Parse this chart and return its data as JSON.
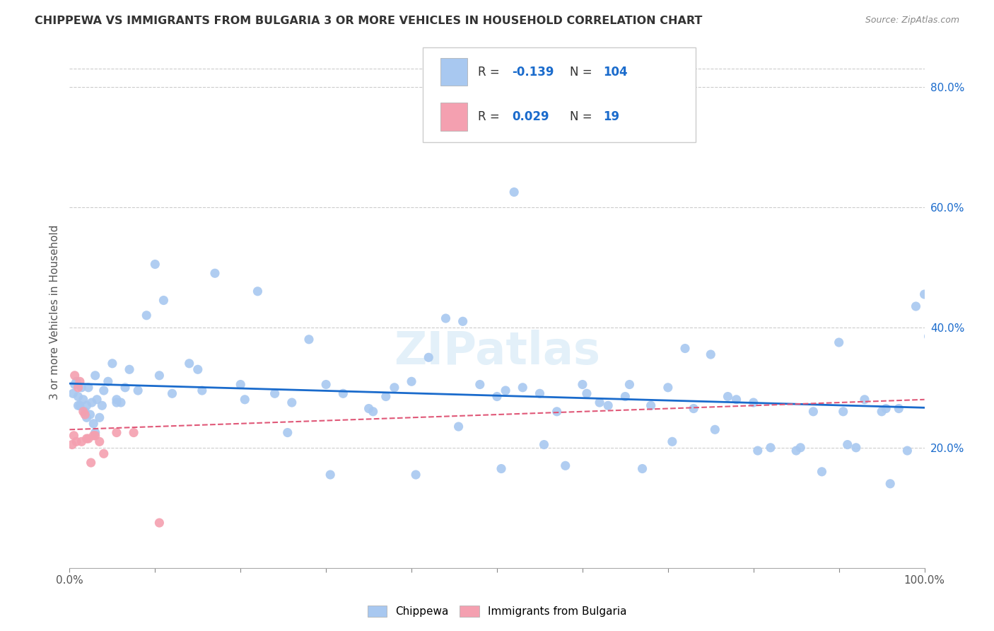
{
  "title": "CHIPPEWA VS IMMIGRANTS FROM BULGARIA 3 OR MORE VEHICLES IN HOUSEHOLD CORRELATION CHART",
  "source": "Source: ZipAtlas.com",
  "ylabel": "3 or more Vehicles in Household",
  "legend_label1": "Chippewa",
  "legend_label2": "Immigrants from Bulgaria",
  "r1": "-0.139",
  "n1": "104",
  "r2": "0.029",
  "n2": "19",
  "chippewa_color": "#a8c8f0",
  "bulgaria_color": "#f4a0b0",
  "line1_color": "#1a6bcc",
  "line2_color": "#e05878",
  "text_color": "#333333",
  "axis_color": "#1a6bcc",
  "grid_color": "#cccccc",
  "background_color": "#ffffff",
  "watermark": "ZIPatlas",
  "chippewa_x": [
    0.4,
    0.6,
    0.8,
    1.0,
    1.2,
    1.4,
    1.6,
    1.8,
    2.0,
    2.2,
    2.4,
    2.6,
    2.8,
    3.0,
    3.2,
    3.5,
    3.8,
    4.0,
    4.5,
    5.0,
    5.5,
    6.0,
    6.5,
    7.0,
    8.0,
    9.0,
    10.0,
    11.0,
    12.0,
    14.0,
    15.0,
    17.0,
    20.0,
    22.0,
    24.0,
    26.0,
    28.0,
    30.0,
    32.0,
    35.0,
    37.0,
    38.0,
    40.0,
    42.0,
    44.0,
    46.0,
    48.0,
    50.0,
    51.0,
    52.0,
    53.0,
    55.0,
    57.0,
    58.0,
    60.0,
    62.0,
    63.0,
    65.0,
    67.0,
    68.0,
    70.0,
    72.0,
    73.0,
    75.0,
    77.0,
    78.0,
    80.0,
    82.0,
    85.0,
    87.0,
    88.0,
    90.0,
    91.0,
    92.0,
    93.0,
    95.0,
    96.0,
    97.0,
    98.0,
    99.0,
    100.0,
    100.5,
    95.5,
    90.5,
    85.5,
    80.5,
    75.5,
    70.5,
    65.5,
    60.5,
    55.5,
    50.5,
    45.5,
    40.5,
    35.5,
    30.5,
    25.5,
    20.5,
    15.5,
    10.5,
    5.5,
    3.0,
    2.0,
    1.0
  ],
  "chippewa_y": [
    29.0,
    30.5,
    31.0,
    28.5,
    27.0,
    30.0,
    28.0,
    26.0,
    27.0,
    30.0,
    25.5,
    27.5,
    24.0,
    22.5,
    28.0,
    25.0,
    27.0,
    29.5,
    31.0,
    34.0,
    28.0,
    27.5,
    30.0,
    33.0,
    29.5,
    42.0,
    50.5,
    44.5,
    29.0,
    34.0,
    33.0,
    49.0,
    30.5,
    46.0,
    29.0,
    27.5,
    38.0,
    30.5,
    29.0,
    26.5,
    28.5,
    30.0,
    31.0,
    35.0,
    41.5,
    41.0,
    30.5,
    28.5,
    29.5,
    62.5,
    30.0,
    29.0,
    26.0,
    17.0,
    30.5,
    27.5,
    27.0,
    28.5,
    16.5,
    27.0,
    30.0,
    36.5,
    26.5,
    35.5,
    28.5,
    28.0,
    27.5,
    20.0,
    19.5,
    26.0,
    16.0,
    37.5,
    20.5,
    20.0,
    28.0,
    26.0,
    14.0,
    26.5,
    19.5,
    43.5,
    45.5,
    38.5,
    26.5,
    26.0,
    20.0,
    19.5,
    23.0,
    21.0,
    30.5,
    29.0,
    20.5,
    16.5,
    23.5,
    15.5,
    26.0,
    15.5,
    22.5,
    28.0,
    29.5,
    32.0,
    27.5,
    32.0,
    25.0,
    27.0
  ],
  "bulgaria_x": [
    0.3,
    0.5,
    0.6,
    0.8,
    1.0,
    1.2,
    1.4,
    1.6,
    1.8,
    2.0,
    2.2,
    2.5,
    2.8,
    3.0,
    3.5,
    4.0,
    5.5,
    7.5,
    10.5
  ],
  "bulgaria_y": [
    20.5,
    22.0,
    32.0,
    21.0,
    30.0,
    31.0,
    21.0,
    26.0,
    25.5,
    21.5,
    21.5,
    17.5,
    22.0,
    22.0,
    21.0,
    19.0,
    22.5,
    22.5,
    7.5
  ],
  "xlim": [
    0,
    100
  ],
  "ylim": [
    0,
    85
  ],
  "ytick_vals": [
    20,
    40,
    60,
    80
  ],
  "ytick_labels": [
    "20.0%",
    "40.0%",
    "60.0%",
    "80.0%"
  ]
}
